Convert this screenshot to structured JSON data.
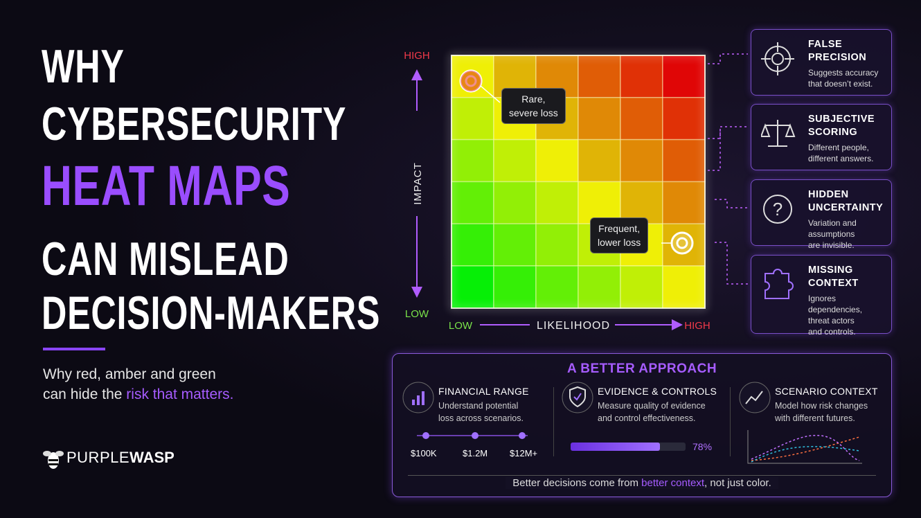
{
  "title": {
    "lines": [
      "WHY",
      "CYBERSECURITY",
      "HEAT MAPS",
      "CAN MISLEAD",
      "DECISION-MAKERS"
    ]
  },
  "subtitle": {
    "line1": "Why red, amber and green",
    "line2_before": "can hide the",
    "highlight": "risk that matters."
  },
  "brand": {
    "part1": "PURPLE",
    "part2": "WASP"
  },
  "heatmap": {
    "y_high": "HIGH",
    "y_label": "IMPACT",
    "y_low": "LOW",
    "x_low": "LOW",
    "x_label": "LIKELIHOOD",
    "x_high": "HIGH",
    "callouts": [
      {
        "lines": [
          "Rare,",
          "severe loss"
        ]
      },
      {
        "lines": [
          "Frequent,",
          "lower loss"
        ]
      }
    ]
  },
  "issues": [
    {
      "title": [
        "FALSE",
        "PRECISION"
      ],
      "text": [
        "Suggests accuracy",
        "that doesn’t exist."
      ]
    },
    {
      "title": [
        "SUBJECTIVE",
        "SCORING"
      ],
      "text": [
        "Different people,",
        "different answers."
      ]
    },
    {
      "title": [
        "HIDDEN",
        "UNCERTAINTY"
      ],
      "text": [
        "Variation and assumptions",
        "are invisible."
      ]
    },
    {
      "title": [
        "MISSING",
        "CONTEXT"
      ],
      "text": [
        "Ignores dependencies,",
        "threat actors",
        "and controls."
      ]
    }
  ],
  "approach": {
    "title": "A BETTER APPROACH",
    "items": [
      {
        "title": "FINANCIAL RANGE",
        "text": [
          "Understand potential",
          "loss across scenarios."
        ]
      },
      {
        "title": "EVIDENCE & CONTROLS",
        "text": [
          "Measure quality of evidence",
          "and control effectiveness."
        ]
      },
      {
        "title": "SCENARIO CONTEXT",
        "text": [
          "Model how risk changes",
          "with different futures."
        ]
      }
    ],
    "range_labels": [
      "$100K",
      "$1.2M",
      "$12M+"
    ],
    "progress": {
      "value": 78,
      "label": "78%"
    },
    "footer": {
      "before": "Better decisions come from",
      "highlight": "better context",
      "after": ", not just color."
    }
  }
}
